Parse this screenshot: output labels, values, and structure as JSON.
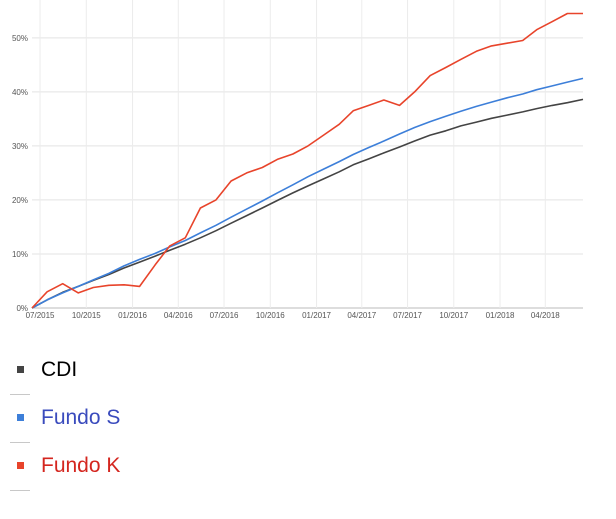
{
  "chart_data": {
    "type": "line",
    "title": "",
    "xlabel": "",
    "ylabel": "",
    "x_ticks": [
      "07/2015",
      "10/2015",
      "01/2016",
      "04/2016",
      "07/2016",
      "10/2016",
      "01/2017",
      "04/2017",
      "07/2017",
      "10/2017",
      "01/2018",
      "04/2018"
    ],
    "y_ticks": [
      "0%",
      "10%",
      "20%",
      "30%",
      "40%",
      "50%"
    ],
    "ylim": [
      0,
      57
    ],
    "grid": true,
    "legend_position": "bottom",
    "x": [
      "2015-06-15",
      "2015-07-15",
      "2015-08-15",
      "2015-09-15",
      "2015-10-15",
      "2015-11-15",
      "2015-12-15",
      "2016-01-15",
      "2016-02-15",
      "2016-03-15",
      "2016-04-15",
      "2016-05-15",
      "2016-06-15",
      "2016-07-15",
      "2016-08-15",
      "2016-09-15",
      "2016-10-15",
      "2016-11-15",
      "2016-12-15",
      "2017-01-15",
      "2017-02-15",
      "2017-03-15",
      "2017-04-15",
      "2017-05-15",
      "2017-06-15",
      "2017-07-15",
      "2017-08-15",
      "2017-09-15",
      "2017-10-15",
      "2017-11-15",
      "2017-12-15",
      "2018-01-15",
      "2018-02-15",
      "2018-03-15",
      "2018-04-15",
      "2018-05-15",
      "2018-06-15"
    ],
    "series": [
      {
        "name": "CDI",
        "color": "#444444",
        "values": [
          0,
          1.5,
          2.9,
          4.0,
          5.1,
          6.2,
          7.4,
          8.5,
          9.6,
          10.7,
          11.8,
          13.0,
          14.3,
          15.7,
          17.1,
          18.5,
          19.9,
          21.3,
          22.6,
          23.9,
          25.2,
          26.5,
          27.6,
          28.7,
          29.8,
          30.9,
          32.0,
          32.8,
          33.7,
          34.4,
          35.1,
          35.7,
          36.3,
          36.9,
          37.5,
          38.0,
          38.6
        ]
      },
      {
        "name": "Fundo S",
        "color": "#3d7fd9",
        "values": [
          0,
          1.5,
          2.8,
          4.0,
          5.2,
          6.4,
          7.8,
          9.0,
          10.1,
          11.3,
          12.5,
          13.9,
          15.3,
          16.8,
          18.3,
          19.8,
          21.3,
          22.8,
          24.3,
          25.7,
          27.1,
          28.4,
          29.7,
          30.9,
          32.2,
          33.4,
          34.5,
          35.5,
          36.4,
          37.3,
          38.1,
          38.9,
          39.6,
          40.4,
          41.1,
          41.8,
          42.5
        ]
      },
      {
        "name": "Fundo K",
        "color": "#e8442b",
        "values": [
          0,
          3.0,
          4.5,
          2.8,
          3.8,
          4.2,
          4.3,
          4.0,
          8.0,
          11.5,
          13.0,
          18.5,
          20.0,
          23.5,
          25.0,
          26.0,
          27.5,
          28.5,
          30.0,
          32.0,
          34.0,
          36.5,
          37.5,
          38.5,
          37.5,
          40.0,
          43.0,
          44.5,
          46.0,
          47.5,
          48.5,
          49.0,
          49.5,
          51.5,
          53.0,
          54.5,
          54.5
        ]
      }
    ]
  },
  "legend": {
    "items": [
      {
        "label": "CDI",
        "color": "#444444",
        "text_color": "#000000"
      },
      {
        "label": "Fundo S",
        "color": "#3d7fd9",
        "text_color": "#3a4bbd"
      },
      {
        "label": "Fundo K",
        "color": "#e8442b",
        "text_color": "#d4261f"
      }
    ]
  }
}
